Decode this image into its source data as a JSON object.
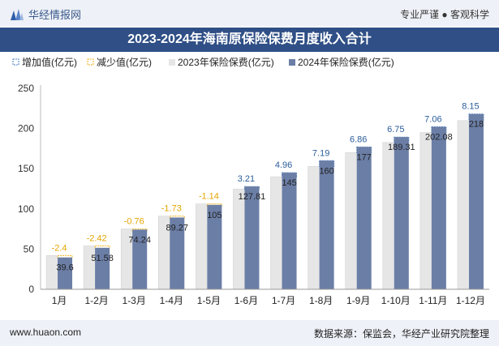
{
  "header": {
    "brand": "华经情报网",
    "tagline": "专业严谨 ● 客观科学"
  },
  "footer": {
    "site": "www.huaon.com",
    "source": "数据来源：保监会，华经产业研究院整理"
  },
  "colors": {
    "increase": "#4a7fc1",
    "decrease": "#f1b51c",
    "bar2023": "#e6e6e6",
    "bar2024": "#6b7ea6",
    "title_bg": "#2f4f86"
  },
  "chart_data": {
    "type": "bar",
    "title": "2023-2024年海南原保险保费月度收入合计",
    "categories": [
      "1月",
      "1-2月",
      "1-3月",
      "1-4月",
      "1-5月",
      "1-6月",
      "1-7月",
      "1-8月",
      "1-9月",
      "1-10月",
      "1-11月",
      "1-12月"
    ],
    "series": [
      {
        "name": "2023年保险保费(亿元)",
        "values": [
          42.0,
          54.0,
          75.0,
          91.0,
          106.14,
          124.6,
          140.04,
          152.81,
          170.14,
          182.56,
          195.02,
          209.85
        ]
      },
      {
        "name": "2024年保险保费(亿元)",
        "values": [
          39.6,
          51.58,
          74.24,
          89.27,
          105,
          127.81,
          145,
          160,
          177,
          189.31,
          202.08,
          218
        ]
      }
    ],
    "changes": [
      -2.4,
      -2.42,
      -0.76,
      -1.73,
      -1.14,
      3.21,
      4.96,
      7.19,
      6.86,
      6.75,
      7.06,
      8.15
    ],
    "legend": [
      "增加值(亿元)",
      "减少值(亿元)",
      "2023年保险保费(亿元)",
      "2024年保险保费(亿元)"
    ],
    "legend_position": "top-left",
    "ylim": [
      0,
      250
    ],
    "yticks": [
      0,
      50,
      100,
      150,
      200,
      250
    ],
    "grid": false
  }
}
